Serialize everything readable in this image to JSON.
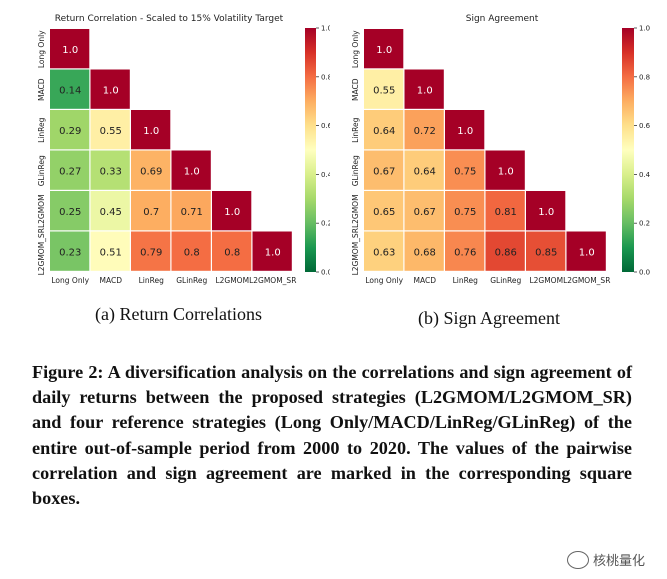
{
  "chart_data": [
    {
      "type": "heatmap",
      "title": "Return Correlation - Scaled to 15% Volatility Target",
      "rows": [
        "Long Only",
        "MACD",
        "LinReg",
        "GLinReg",
        "L2GMOM",
        "L2GMOM_SR"
      ],
      "columns": [
        "Long Only",
        "MACD",
        "LinReg",
        "GLinReg",
        "L2GMOM",
        "L2GMOM_SR"
      ],
      "values": [
        [
          1.0
        ],
        [
          0.14,
          1.0
        ],
        [
          0.29,
          0.55,
          1.0
        ],
        [
          0.27,
          0.33,
          0.69,
          1.0
        ],
        [
          0.25,
          0.45,
          0.7,
          0.71,
          1.0
        ],
        [
          0.23,
          0.51,
          0.79,
          0.8,
          0.8,
          1.0
        ]
      ],
      "value_labels": [
        [
          "1.0"
        ],
        [
          "0.14",
          "1.0"
        ],
        [
          "0.29",
          "0.55",
          "1.0"
        ],
        [
          "0.27",
          "0.33",
          "0.69",
          "1.0"
        ],
        [
          "0.25",
          "0.45",
          "0.7",
          "0.71",
          "1.0"
        ],
        [
          "0.23",
          "0.51",
          "0.79",
          "0.8",
          "0.8",
          "1.0"
        ]
      ],
      "colormap": "RdYlGn_r",
      "vmin": 0.0,
      "vmax": 1.0,
      "colorbar_ticks": [
        "0.0",
        "0.2",
        "0.4",
        "0.6",
        "0.8",
        "1.0"
      ]
    },
    {
      "type": "heatmap",
      "title": "Sign Agreement",
      "rows": [
        "Long Only",
        "MACD",
        "LinReg",
        "GLinReg",
        "L2GMOM",
        "L2GMOM_SR"
      ],
      "columns": [
        "Long Only",
        "MACD",
        "LinReg",
        "GLinReg",
        "L2GMOM",
        "L2GMOM_SR"
      ],
      "values": [
        [
          1.0
        ],
        [
          0.55,
          1.0
        ],
        [
          0.64,
          0.72,
          1.0
        ],
        [
          0.67,
          0.64,
          0.75,
          1.0
        ],
        [
          0.65,
          0.67,
          0.75,
          0.81,
          1.0
        ],
        [
          0.63,
          0.68,
          0.76,
          0.86,
          0.85,
          1.0
        ]
      ],
      "value_labels": [
        [
          "1.0"
        ],
        [
          "0.55",
          "1.0"
        ],
        [
          "0.64",
          "0.72",
          "1.0"
        ],
        [
          "0.67",
          "0.64",
          "0.75",
          "1.0"
        ],
        [
          "0.65",
          "0.67",
          "0.75",
          "0.81",
          "1.0"
        ],
        [
          "0.63",
          "0.68",
          "0.76",
          "0.86",
          "0.85",
          "1.0"
        ]
      ],
      "colormap": "RdYlGn_r",
      "vmin": 0.0,
      "vmax": 1.0,
      "colorbar_ticks": [
        "0.0",
        "0.2",
        "0.4",
        "0.6",
        "0.8",
        "1.0"
      ]
    }
  ],
  "captions": {
    "a": "(a) Return Correlations",
    "b": "(b) Sign Agreement",
    "figure": "Figure 2: A diversification analysis on the correlations and sign agreement of daily returns between the proposed strategies (L2GMOM/L2GMOM_SR) and four reference strategies (Long Only/MACD/LinReg/GLinReg) of the entire out-of-sample period from 2000 to 2020. The values of the pairwise correlation and sign agreement are marked in the corresponding square boxes."
  },
  "watermark": {
    "text": "核桃量化",
    "icon": "wechat-logo-icon"
  }
}
